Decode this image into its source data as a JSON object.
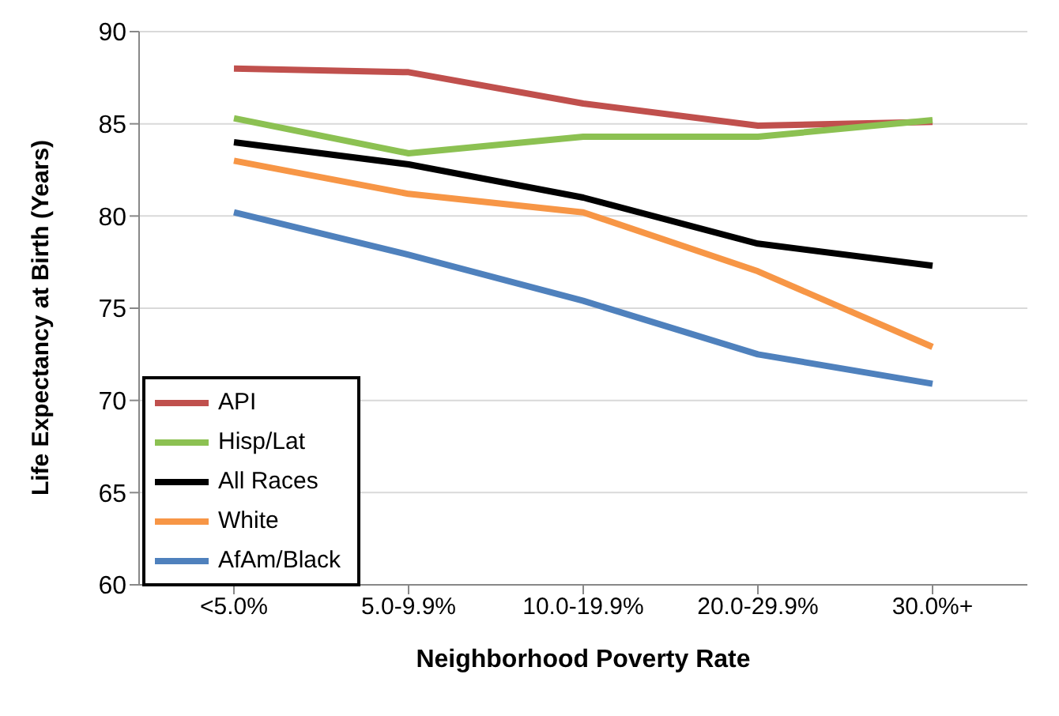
{
  "chart_data": {
    "type": "line",
    "xlabel": "Neighborhood Poverty Rate",
    "ylabel": "Life Expectancy at Birth (Years)",
    "categories": [
      "<5.0%",
      "5.0-9.9%",
      "10.0-19.9%",
      "20.0-29.9%",
      "30.0%+"
    ],
    "series": [
      {
        "name": "API",
        "color": "#c0504d",
        "values": [
          88.0,
          87.8,
          86.1,
          84.9,
          85.1
        ]
      },
      {
        "name": "Hisp/Lat",
        "color": "#8cc152",
        "values": [
          85.3,
          83.4,
          84.3,
          84.3,
          85.2
        ]
      },
      {
        "name": "All Races",
        "color": "#000000",
        "values": [
          84.0,
          82.8,
          81.0,
          78.5,
          77.3
        ]
      },
      {
        "name": "White",
        "color": "#f79646",
        "values": [
          83.0,
          81.2,
          80.2,
          77.0,
          72.9
        ]
      },
      {
        "name": "AfAm/Black",
        "color": "#4f81bd",
        "values": [
          80.2,
          77.9,
          75.4,
          72.5,
          70.9
        ]
      }
    ],
    "ylim": [
      60,
      90
    ],
    "yticks": [
      60,
      65,
      70,
      75,
      80,
      85,
      90
    ],
    "grid": "y",
    "legend": "bottom left",
    "marker": "none",
    "line_style": "solid"
  }
}
